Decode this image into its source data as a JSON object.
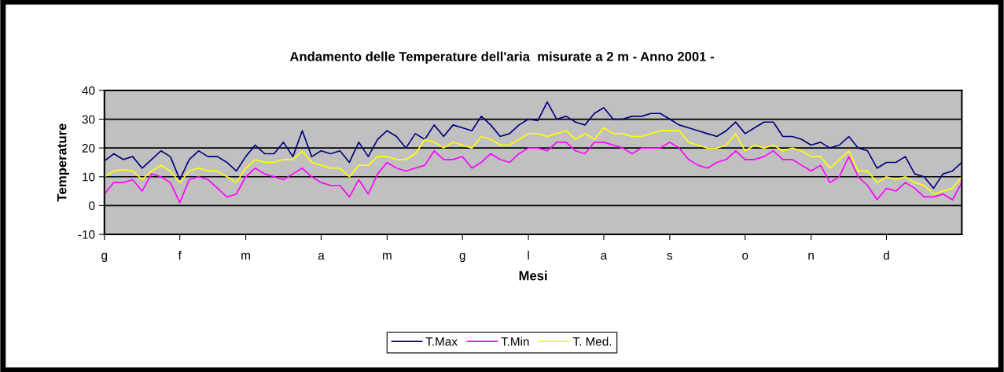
{
  "chart_data": {
    "type": "line",
    "title": "Andamento delle Temperature dell'aria  misurate a 2 m - Anno 2001 -",
    "xlabel": "Mesi",
    "ylabel": "Temperature",
    "categories": [
      "g",
      null,
      null,
      null,
      null,
      null,
      null,
      null,
      "f",
      null,
      null,
      null,
      null,
      null,
      null,
      "m",
      null,
      null,
      null,
      null,
      null,
      null,
      null,
      "a",
      null,
      null,
      null,
      null,
      null,
      null,
      "m",
      null,
      null,
      null,
      null,
      null,
      null,
      null,
      "g",
      null,
      null,
      null,
      null,
      null,
      null,
      "l",
      null,
      null,
      null,
      null,
      null,
      null,
      null,
      "a",
      null,
      null,
      null,
      null,
      null,
      null,
      "s",
      null,
      null,
      null,
      null,
      null,
      null,
      null,
      "o",
      null,
      null,
      null,
      null,
      null,
      null,
      "n",
      null,
      null,
      null,
      null,
      null,
      null,
      null,
      "d",
      null,
      null,
      null,
      null,
      null,
      null,
      null,
      null
    ],
    "series": [
      {
        "name": "T.Max",
        "color": "#000080",
        "values": [
          15.5,
          18,
          16,
          17,
          13,
          16,
          19,
          17,
          9,
          16,
          19,
          17,
          17,
          15,
          12,
          17,
          21,
          18,
          18,
          22,
          17,
          26,
          17,
          19,
          18,
          19,
          15,
          22,
          17,
          23,
          26,
          24,
          20,
          25,
          23,
          28,
          24,
          28,
          27,
          26,
          31,
          28,
          24,
          25,
          28,
          30,
          29.5,
          36,
          30,
          31,
          29,
          28,
          32,
          34,
          30,
          30,
          31,
          31,
          32,
          32,
          30,
          28,
          27,
          26,
          25,
          24,
          26,
          29,
          25,
          27,
          29,
          29,
          24,
          24,
          23,
          21,
          22,
          20,
          21,
          24,
          20,
          19,
          13,
          15,
          15,
          17,
          11,
          10,
          6,
          11,
          12,
          15
        ]
      },
      {
        "name": "T.Min",
        "color": "#ff00ff",
        "values": [
          4,
          8,
          8,
          9,
          5,
          11,
          10,
          8,
          1,
          9,
          10,
          9,
          6,
          3,
          4,
          10,
          13,
          11,
          10,
          9,
          11,
          13,
          10,
          8,
          7,
          7,
          3,
          9,
          4,
          11,
          15,
          13,
          12,
          13,
          14,
          19,
          16,
          16,
          17,
          13,
          15,
          18,
          16,
          15,
          18,
          20,
          20,
          19,
          22,
          22,
          19,
          18,
          22,
          22,
          21,
          20,
          18,
          20,
          20,
          20,
          22,
          20,
          16,
          14,
          13,
          15,
          16,
          19,
          16,
          16,
          17,
          19,
          16,
          16,
          14,
          12,
          14,
          8,
          10,
          17,
          10,
          7,
          2,
          6,
          5,
          8,
          6,
          3,
          3,
          4,
          2,
          8
        ]
      },
      {
        "name": "T. Med.",
        "color": "#ffff00",
        "values": [
          10,
          12,
          12.5,
          12,
          9,
          12,
          14,
          12,
          8,
          12,
          13,
          12,
          12,
          10,
          8,
          13,
          16,
          15,
          15,
          16,
          16,
          19,
          15,
          14,
          13,
          13,
          10,
          14,
          14,
          17,
          17,
          16,
          16,
          18,
          23,
          22,
          20,
          22,
          21,
          20,
          24,
          23,
          21,
          21,
          23,
          25,
          25,
          24,
          25,
          26,
          23,
          25,
          23,
          27,
          25,
          25,
          24,
          24,
          25,
          26,
          26,
          26,
          22,
          21,
          20,
          20,
          21,
          25,
          19,
          21,
          20,
          21,
          19,
          20,
          19,
          17,
          17,
          13,
          16,
          19,
          12,
          12,
          8,
          10,
          9,
          10,
          8,
          7,
          4,
          5,
          6,
          10
        ]
      }
    ],
    "ylim": [
      -10,
      40
    ],
    "yticks": [
      -10,
      0,
      10,
      20,
      30,
      40
    ],
    "grid": "y",
    "legend": "bottom",
    "line_style": "solid",
    "marker": "none"
  }
}
